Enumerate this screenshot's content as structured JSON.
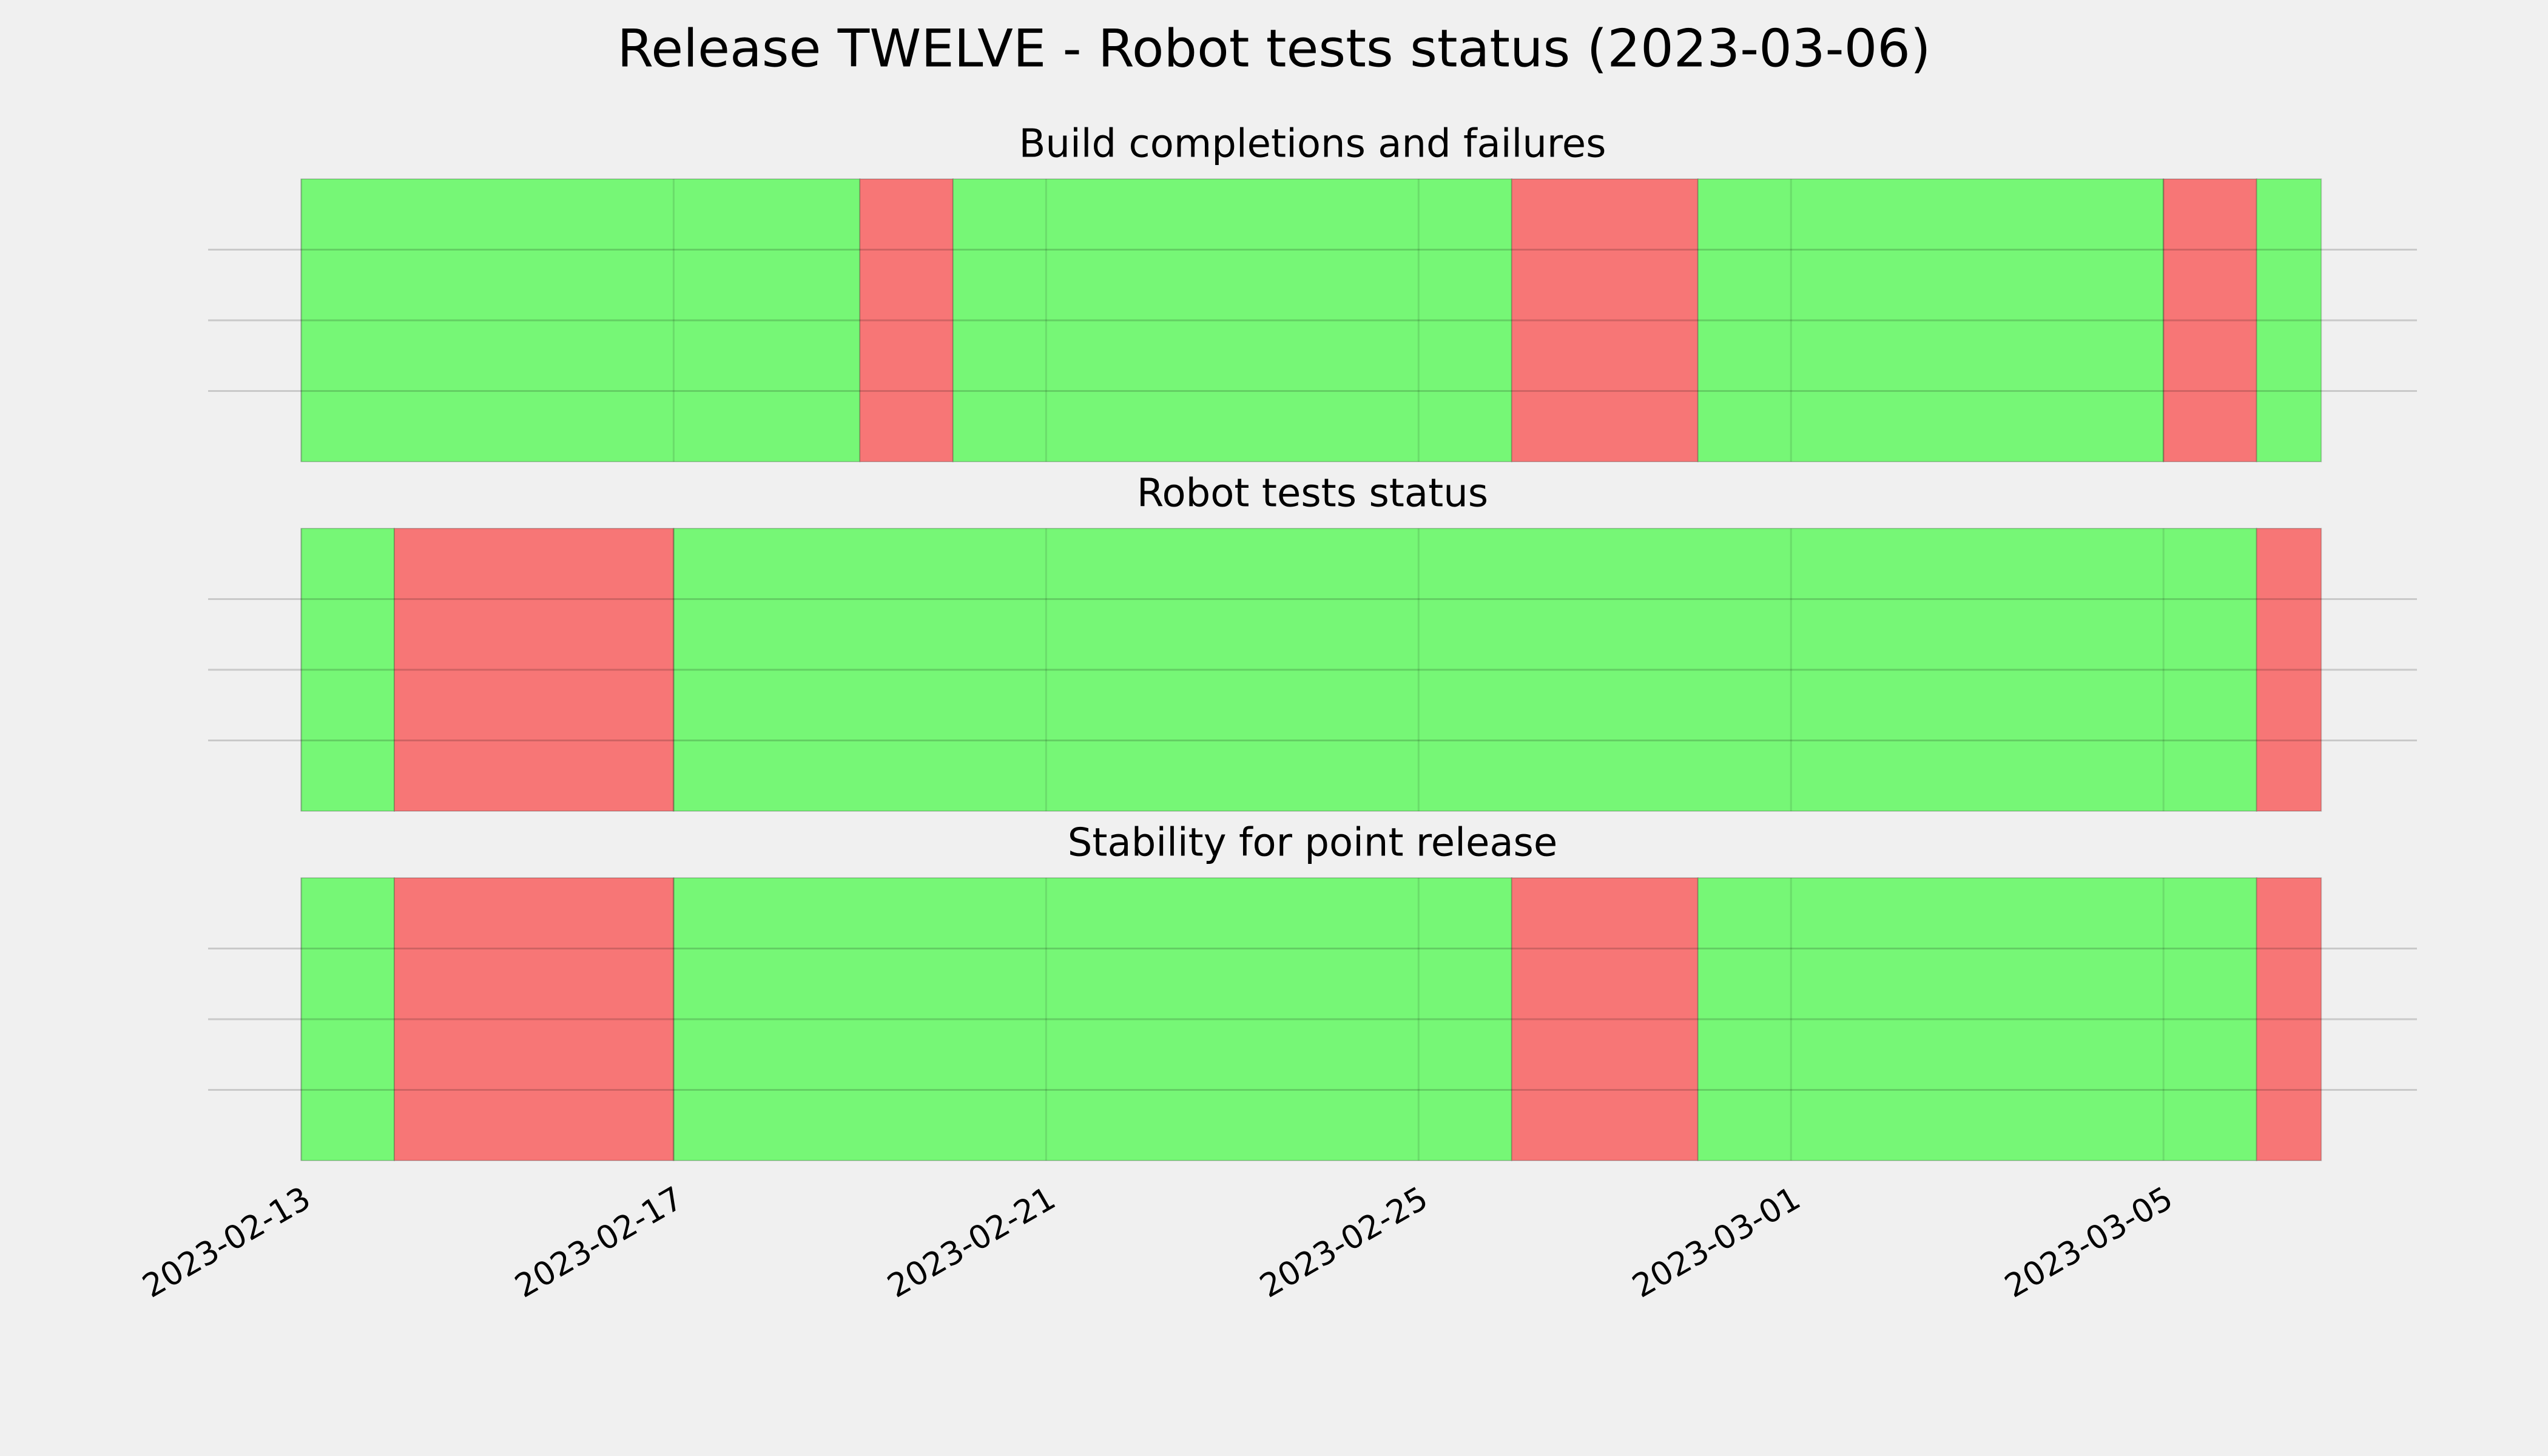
{
  "title": "Release TWELVE - Robot tests status (2023-03-06)",
  "xlim": [
    "2023-02-12",
    "2023-03-07T17:20"
  ],
  "xticks": [
    "2023-02-13",
    "2023-02-17",
    "2023-02-21",
    "2023-02-25",
    "2023-03-01",
    "2023-03-05"
  ],
  "chart_data": [
    {
      "type": "timeline",
      "title": "Build completions and failures",
      "ylim": [
        0,
        1
      ],
      "yticks": [
        0.25,
        0.5,
        0.75
      ],
      "grid": true,
      "segments": [
        {
          "start": "2023-02-13",
          "end": "2023-02-19",
          "color": "#76f776"
        },
        {
          "start": "2023-02-19",
          "end": "2023-02-20",
          "color": "#f77676"
        },
        {
          "start": "2023-02-20",
          "end": "2023-02-26",
          "color": "#76f776"
        },
        {
          "start": "2023-02-26",
          "end": "2023-02-28",
          "color": "#f77676"
        },
        {
          "start": "2023-02-28",
          "end": "2023-03-05",
          "color": "#76f776"
        },
        {
          "start": "2023-03-05",
          "end": "2023-03-06",
          "color": "#f77676"
        },
        {
          "start": "2023-03-06",
          "end": "2023-03-06T16:40",
          "color": "#76f776"
        }
      ]
    },
    {
      "type": "timeline",
      "title": "Robot tests status",
      "ylim": [
        0,
        1
      ],
      "yticks": [
        0.25,
        0.5,
        0.75
      ],
      "grid": true,
      "segments": [
        {
          "start": "2023-02-13",
          "end": "2023-02-14",
          "color": "#76f776"
        },
        {
          "start": "2023-02-14",
          "end": "2023-02-17",
          "color": "#f77676"
        },
        {
          "start": "2023-02-17",
          "end": "2023-03-06",
          "color": "#76f776"
        },
        {
          "start": "2023-03-06",
          "end": "2023-03-06T16:40",
          "color": "#f77676"
        }
      ]
    },
    {
      "type": "timeline",
      "title": "Stability for point release",
      "ylim": [
        0,
        1
      ],
      "yticks": [
        0.25,
        0.5,
        0.75
      ],
      "grid": true,
      "segments": [
        {
          "start": "2023-02-13",
          "end": "2023-02-14",
          "color": "#76f776"
        },
        {
          "start": "2023-02-14",
          "end": "2023-02-17",
          "color": "#f77676"
        },
        {
          "start": "2023-02-17",
          "end": "2023-02-26",
          "color": "#76f776"
        },
        {
          "start": "2023-02-26",
          "end": "2023-02-28",
          "color": "#f77676"
        },
        {
          "start": "2023-02-28",
          "end": "2023-03-06",
          "color": "#76f776"
        },
        {
          "start": "2023-03-06",
          "end": "2023-03-06T16:40",
          "color": "#f77676"
        }
      ]
    }
  ]
}
